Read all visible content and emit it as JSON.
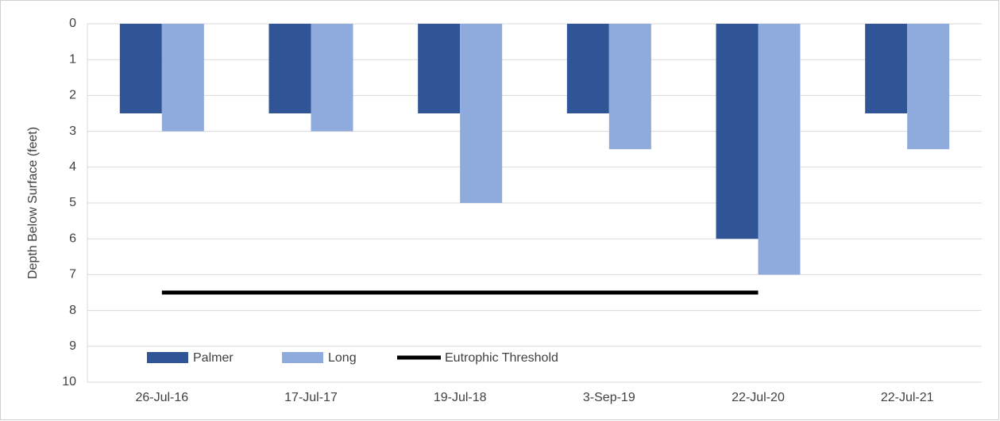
{
  "chart_data": {
    "type": "bar",
    "y_label": "Depth Below Surface (feet)",
    "categories": [
      "26-Jul-16",
      "17-Jul-17",
      "19-Jul-18",
      "3-Sep-19",
      "22-Jul-20",
      "22-Jul-21"
    ],
    "series": [
      {
        "name": "Palmer",
        "color": "#2f5597",
        "values": [
          2.5,
          2.5,
          2.5,
          2.5,
          6,
          2.5
        ]
      },
      {
        "name": "Long",
        "color": "#8faadc",
        "values": [
          3,
          3,
          5,
          3.5,
          7,
          3.5
        ]
      },
      {
        "name": "Eutrophic Threshold",
        "type": "line",
        "color": "#000000",
        "values": [
          7.5,
          7.5,
          7.5,
          7.5,
          7.5,
          null
        ]
      }
    ],
    "ylim": [
      0,
      10
    ],
    "yticks": [
      0,
      1,
      2,
      3,
      4,
      5,
      6,
      7,
      8,
      9,
      10
    ],
    "y_inverted": true,
    "grid": true,
    "legend": "bottom-left"
  }
}
